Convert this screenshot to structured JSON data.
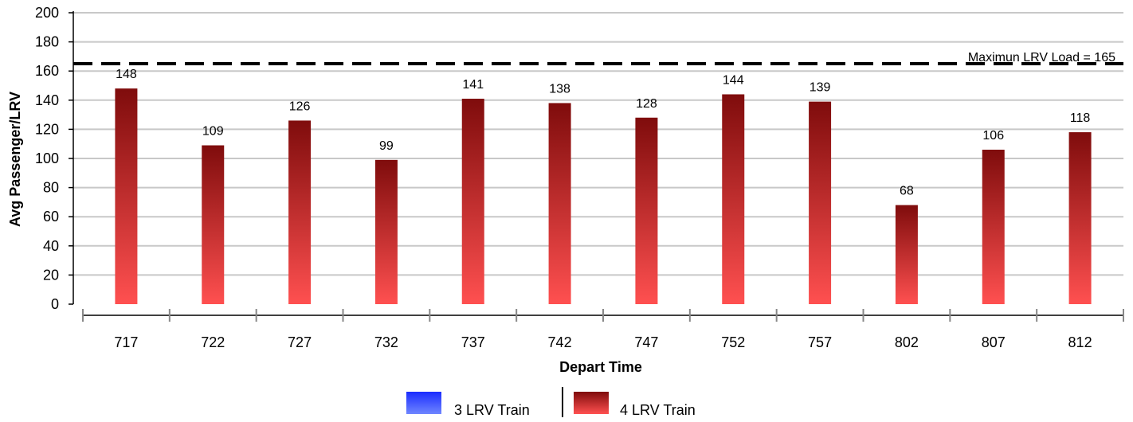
{
  "chart_data": {
    "type": "bar",
    "title": "",
    "xlabel": "Depart Time",
    "ylabel": "Avg Passenger/LRV",
    "ylim": [
      0,
      200
    ],
    "yticks": [
      0,
      20,
      40,
      60,
      80,
      100,
      120,
      140,
      160,
      180,
      200
    ],
    "grid": true,
    "categories": [
      "717",
      "722",
      "727",
      "732",
      "737",
      "742",
      "747",
      "752",
      "757",
      "802",
      "807",
      "812"
    ],
    "series": [
      {
        "name": "3 LRV Train",
        "values": [
          null,
          null,
          null,
          null,
          null,
          null,
          null,
          null,
          null,
          null,
          null,
          null
        ],
        "color_top": "#1a2cff",
        "color_bottom": "#6f86ff"
      },
      {
        "name": "4 LRV Train",
        "values": [
          148,
          109,
          126,
          99,
          141,
          138,
          128,
          144,
          139,
          68,
          106,
          118
        ],
        "color_top": "#7f0c0c",
        "color_bottom": "#ff5050"
      }
    ],
    "reference_line": {
      "label": "Maximun LRV Load = 165",
      "value": 165,
      "style": "dashed"
    },
    "legend_position": "bottom-center"
  }
}
